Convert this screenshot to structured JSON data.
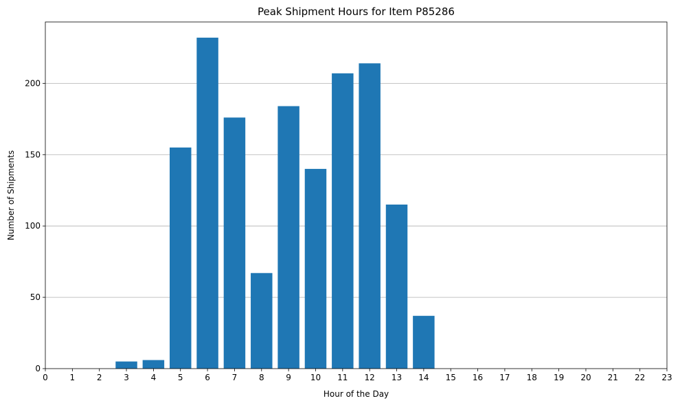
{
  "chart_data": {
    "type": "bar",
    "title": "Peak Shipment Hours for Item P85286",
    "xlabel": "Hour of the Day",
    "ylabel": "Number of Shipments",
    "categories": [
      0,
      1,
      2,
      3,
      4,
      5,
      6,
      7,
      8,
      9,
      10,
      11,
      12,
      13,
      14,
      15,
      16,
      17,
      18,
      19,
      20,
      21,
      22,
      23
    ],
    "bars": [
      {
        "x": 3,
        "value": 5
      },
      {
        "x": 4,
        "value": 6
      },
      {
        "x": 5,
        "value": 155
      },
      {
        "x": 6,
        "value": 232
      },
      {
        "x": 7,
        "value": 176
      },
      {
        "x": 8,
        "value": 67
      },
      {
        "x": 9,
        "value": 184
      },
      {
        "x": 10,
        "value": 140
      },
      {
        "x": 11,
        "value": 207
      },
      {
        "x": 12,
        "value": 214
      },
      {
        "x": 13,
        "value": 115
      },
      {
        "x": 14,
        "value": 37
      }
    ],
    "xlim": [
      0,
      23
    ],
    "ylim": [
      0,
      243
    ],
    "yticks": [
      0,
      50,
      100,
      150,
      200
    ],
    "grid": "y-major",
    "bar_color": "#1f77b4",
    "legend": "none"
  }
}
